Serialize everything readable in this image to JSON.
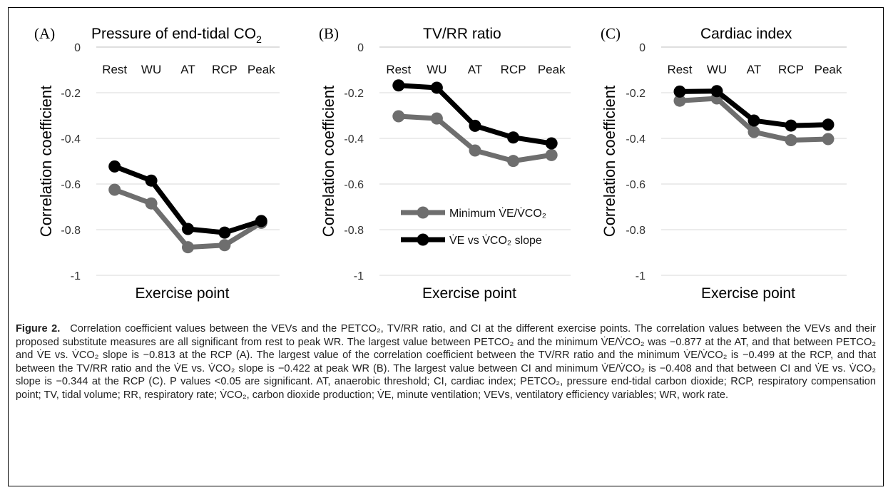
{
  "colors": {
    "minimum_series": "#6e6e6e",
    "slope_series": "#000000",
    "gridline": "#d9d9d9"
  },
  "chart_data": [
    {
      "type": "line",
      "panel_label": "(A)",
      "title": "Pressure of end-tidal CO",
      "title_subscript": "2",
      "xlabel": "Exercise point",
      "ylabel": "Correlation coefficient",
      "categories": [
        "Rest",
        "WU",
        "AT",
        "RCP",
        "Peak"
      ],
      "ylim": [
        -1,
        0
      ],
      "yticks": [
        0,
        -0.2,
        -0.4,
        -0.6,
        -0.8,
        -1
      ],
      "ytick_labels": [
        "0",
        "-0.2",
        "-0.4",
        "-0.6",
        "-0.8",
        "-1"
      ],
      "x_axis_position": "top",
      "grid": true,
      "series": [
        {
          "values": [
            -0.625,
            -0.685,
            -0.877,
            -0.868,
            -0.77
          ]
        },
        {
          "values": [
            -0.523,
            -0.585,
            -0.797,
            -0.813,
            -0.762
          ]
        }
      ]
    },
    {
      "type": "line",
      "panel_label": "(B)",
      "title": "TV/RR ratio",
      "xlabel": "Exercise point",
      "ylabel": "Correlation coefficient",
      "categories": [
        "Rest",
        "WU",
        "AT",
        "RCP",
        "Peak"
      ],
      "ylim": [
        -1,
        0
      ],
      "yticks": [
        0,
        -0.2,
        -0.4,
        -0.6,
        -0.8,
        -1
      ],
      "ytick_labels": [
        "0",
        "-0.2",
        "-0.4",
        "-0.6",
        "-0.8",
        "-1"
      ],
      "x_axis_position": "top",
      "grid": true,
      "legend_position": "bottom-center",
      "series": [
        {
          "name": "Minimum V̇E/V̇CO₂",
          "values": [
            -0.303,
            -0.313,
            -0.453,
            -0.499,
            -0.473
          ]
        },
        {
          "name": "V̇E vs V̇CO₂ slope",
          "values": [
            -0.168,
            -0.178,
            -0.345,
            -0.396,
            -0.422
          ]
        }
      ]
    },
    {
      "type": "line",
      "panel_label": "(C)",
      "title": "Cardiac index",
      "xlabel": "Exercise point",
      "ylabel": "Correlation coefficient",
      "categories": [
        "Rest",
        "WU",
        "AT",
        "RCP",
        "Peak"
      ],
      "ylim": [
        -1,
        0
      ],
      "yticks": [
        0,
        -0.2,
        -0.4,
        -0.6,
        -0.8,
        -1
      ],
      "ytick_labels": [
        "0",
        "-0.2",
        "-0.4",
        "-0.6",
        "-0.8",
        "-1"
      ],
      "x_axis_position": "top",
      "grid": true,
      "series": [
        {
          "values": [
            -0.235,
            -0.225,
            -0.372,
            -0.408,
            -0.403
          ]
        },
        {
          "values": [
            -0.195,
            -0.193,
            -0.322,
            -0.344,
            -0.34
          ]
        }
      ]
    }
  ],
  "caption": {
    "label": "Figure 2.",
    "text": "Correlation coefficient values between the VEVs and the PETCO₂, TV/RR ratio, and CI at the different exercise points. The correlation values between the VEVs and their proposed substitute measures are all significant from rest to peak WR. The largest value between PETCO₂ and the minimum V̇E/V̇CO₂ was −0.877 at the AT, and that between PETCO₂ and V̇E vs. V̇CO₂ slope is −0.813 at the RCP (A). The largest value of the correlation coefficient between the TV/RR ratio and the minimum V̇E/V̇CO₂ is −0.499 at the RCP, and that between the TV/RR ratio and the V̇E vs. V̇CO₂ slope is −0.422 at peak WR (B). The largest value between CI and minimum V̇E/V̇CO₂ is −0.408 and that between CI and V̇E vs. V̇CO₂ slope is −0.344 at the RCP (C). P values <0.05 are significant. AT, anaerobic threshold; CI, cardiac index; PETCO₂, pressure end-tidal carbon dioxide; RCP, respiratory compensation point; TV, tidal volume; RR, respiratory rate; V̇CO₂, carbon dioxide production; V̇E, minute ventilation; VEVs, ventilatory efficiency variables; WR, work rate."
  }
}
